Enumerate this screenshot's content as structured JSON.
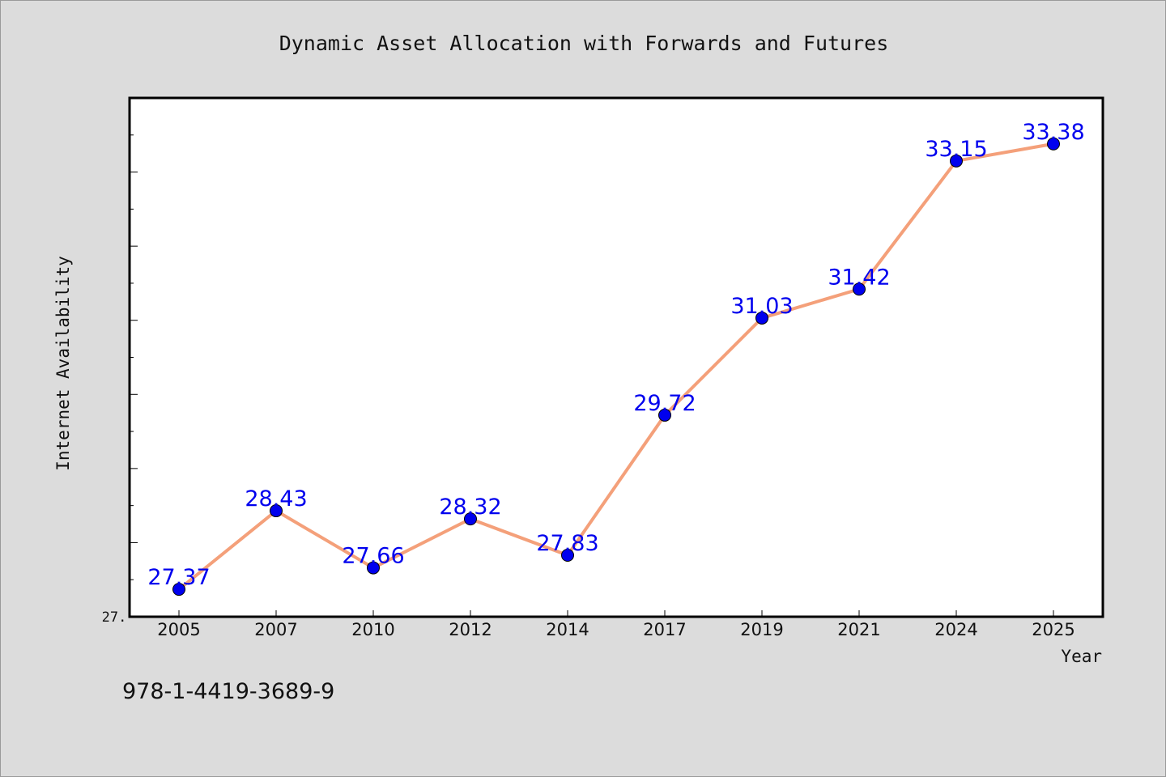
{
  "chart_data": {
    "type": "line",
    "title": "Dynamic Asset Allocation with Forwards and Futures",
    "xlabel": "Year",
    "ylabel": "Internet Availability",
    "categories": [
      "2005",
      "2007",
      "2010",
      "2012",
      "2014",
      "2017",
      "2019",
      "2021",
      "2024",
      "2025"
    ],
    "series": [
      {
        "values": [
          27.37,
          28.43,
          27.66,
          28.32,
          27.83,
          29.72,
          31.03,
          31.42,
          33.15,
          33.38
        ],
        "labels": [
          "27.37",
          "28.43",
          "27.66",
          "28.32",
          "27.83",
          "29.72",
          "31.03",
          "31.42",
          "33.15",
          "33.38"
        ],
        "line_color": "#f4a07a",
        "marker_color": "#0000ee",
        "label_color": "#0000ee"
      }
    ],
    "ylim": [
      27.0,
      34.0
    ],
    "y_tick_label": "27.",
    "grid": false,
    "legend": "none",
    "annotation": "978-1-4419-3689-9"
  }
}
